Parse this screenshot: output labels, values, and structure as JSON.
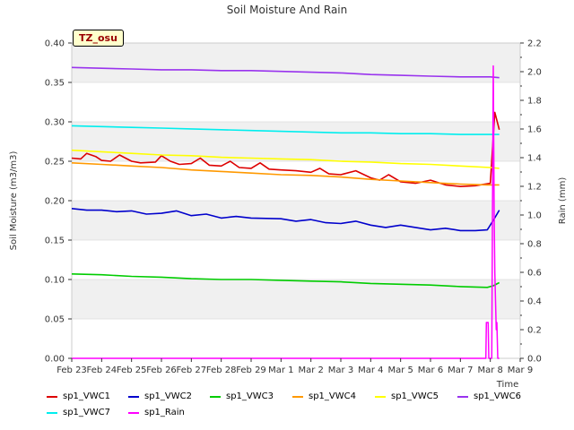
{
  "chart_data": {
    "type": "line",
    "title": "Soil Moisture And Rain",
    "xlabel": "Time",
    "ylabel_left": "Soil Moisture (m3/m3)",
    "ylabel_right": "Rain (mm)",
    "badge": "TZ_osu",
    "ylim_left": [
      0.0,
      0.4
    ],
    "ylim_right": [
      0.0,
      2.2
    ],
    "yticks_left": [
      "0.00",
      "0.05",
      "0.10",
      "0.15",
      "0.20",
      "0.25",
      "0.30",
      "0.35",
      "0.40"
    ],
    "yticks_right": [
      "0.0",
      "0.2",
      "0.4",
      "0.6",
      "0.8",
      "1.0",
      "1.2",
      "1.4",
      "1.6",
      "1.8",
      "2.0",
      "2.2"
    ],
    "xticks": [
      "Feb 23",
      "Feb 24",
      "Feb 25",
      "Feb 26",
      "Feb 27",
      "Feb 28",
      "Feb 29",
      "Mar 1",
      "Mar 2",
      "Mar 3",
      "Mar 4",
      "Mar 5",
      "Mar 6",
      "Mar 7",
      "Mar 8",
      "Mar 9"
    ],
    "grid": true,
    "legend_position": "bottom",
    "series": [
      {
        "name": "sp1_VWC1",
        "axis": "left",
        "color": "#dd0000",
        "x": [
          0.0,
          0.3,
          0.5,
          0.8,
          1.0,
          1.3,
          1.6,
          2.0,
          2.3,
          2.8,
          3.0,
          3.3,
          3.6,
          4.0,
          4.3,
          4.6,
          5.0,
          5.3,
          5.6,
          6.0,
          6.3,
          6.6,
          7.0,
          7.5,
          8.0,
          8.3,
          8.6,
          9.0,
          9.5,
          10.0,
          10.3,
          10.6,
          11.0,
          11.5,
          12.0,
          12.5,
          13.0,
          13.5,
          14.0,
          14.15,
          14.3
        ],
        "y": [
          0.254,
          0.253,
          0.26,
          0.256,
          0.251,
          0.25,
          0.258,
          0.25,
          0.248,
          0.249,
          0.257,
          0.25,
          0.246,
          0.247,
          0.254,
          0.245,
          0.244,
          0.25,
          0.242,
          0.241,
          0.248,
          0.24,
          0.239,
          0.238,
          0.236,
          0.241,
          0.234,
          0.233,
          0.238,
          0.229,
          0.226,
          0.233,
          0.224,
          0.222,
          0.226,
          0.22,
          0.218,
          0.219,
          0.222,
          0.312,
          0.29
        ]
      },
      {
        "name": "sp1_VWC2",
        "axis": "left",
        "color": "#0000cc",
        "x": [
          0.0,
          0.5,
          1.0,
          1.5,
          2.0,
          2.5,
          3.0,
          3.5,
          4.0,
          4.5,
          5.0,
          5.5,
          6.0,
          7.0,
          7.5,
          8.0,
          8.5,
          9.0,
          9.5,
          10.0,
          10.5,
          11.0,
          11.5,
          12.0,
          12.5,
          13.0,
          13.5,
          13.9,
          14.1,
          14.3
        ],
        "y": [
          0.19,
          0.188,
          0.188,
          0.186,
          0.187,
          0.183,
          0.184,
          0.187,
          0.181,
          0.183,
          0.178,
          0.18,
          0.178,
          0.177,
          0.174,
          0.176,
          0.172,
          0.171,
          0.174,
          0.169,
          0.166,
          0.169,
          0.166,
          0.163,
          0.165,
          0.162,
          0.162,
          0.163,
          0.175,
          0.188
        ]
      },
      {
        "name": "sp1_VWC3",
        "axis": "left",
        "color": "#00cc00",
        "x": [
          0.0,
          1.0,
          2.0,
          3.0,
          4.0,
          5.0,
          6.0,
          7.0,
          8.0,
          9.0,
          10.0,
          11.0,
          12.0,
          13.0,
          13.9,
          14.1,
          14.3
        ],
        "y": [
          0.107,
          0.106,
          0.104,
          0.103,
          0.101,
          0.1,
          0.1,
          0.099,
          0.098,
          0.097,
          0.095,
          0.094,
          0.093,
          0.091,
          0.09,
          0.092,
          0.096
        ]
      },
      {
        "name": "sp1_VWC4",
        "axis": "left",
        "color": "#ff9900",
        "x": [
          0.0,
          1.0,
          2.0,
          3.0,
          4.0,
          5.0,
          6.0,
          7.0,
          8.0,
          9.0,
          10.0,
          11.0,
          12.0,
          13.0,
          13.9,
          14.3
        ],
        "y": [
          0.248,
          0.246,
          0.244,
          0.242,
          0.239,
          0.237,
          0.235,
          0.233,
          0.232,
          0.23,
          0.227,
          0.225,
          0.223,
          0.221,
          0.22,
          0.22
        ]
      },
      {
        "name": "sp1_VWC5",
        "axis": "left",
        "color": "#ffff00",
        "x": [
          0.0,
          1.0,
          2.0,
          3.0,
          4.0,
          5.0,
          6.0,
          7.0,
          8.0,
          9.0,
          10.0,
          11.0,
          12.0,
          13.0,
          14.0,
          14.3
        ],
        "y": [
          0.264,
          0.262,
          0.26,
          0.258,
          0.257,
          0.255,
          0.254,
          0.253,
          0.252,
          0.25,
          0.249,
          0.247,
          0.246,
          0.244,
          0.242,
          0.241
        ]
      },
      {
        "name": "sp1_VWC6",
        "axis": "left",
        "color": "#9933ee",
        "x": [
          0.0,
          1.0,
          2.0,
          3.0,
          4.0,
          5.0,
          6.0,
          7.0,
          8.0,
          9.0,
          10.0,
          11.0,
          12.0,
          13.0,
          14.0,
          14.3
        ],
        "y": [
          0.369,
          0.368,
          0.367,
          0.366,
          0.366,
          0.365,
          0.365,
          0.364,
          0.363,
          0.362,
          0.36,
          0.359,
          0.358,
          0.357,
          0.357,
          0.356
        ]
      },
      {
        "name": "sp1_VWC7",
        "axis": "left",
        "color": "#00eeee",
        "x": [
          0.0,
          1.0,
          2.0,
          3.0,
          4.0,
          5.0,
          6.0,
          7.0,
          8.0,
          9.0,
          10.0,
          11.0,
          12.0,
          13.0,
          14.0,
          14.3
        ],
        "y": [
          0.295,
          0.294,
          0.293,
          0.292,
          0.291,
          0.29,
          0.289,
          0.288,
          0.287,
          0.286,
          0.286,
          0.285,
          0.285,
          0.284,
          0.284,
          0.284
        ]
      },
      {
        "name": "sp1_Rain",
        "axis": "right",
        "color": "#ff00ff",
        "x": [
          0.0,
          13.85,
          13.87,
          13.9,
          13.93,
          13.95,
          14.05,
          14.07,
          14.1,
          14.13,
          14.15,
          14.2,
          14.22,
          14.25,
          14.27,
          14.3
        ],
        "y": [
          0.0,
          0.0,
          0.25,
          0.25,
          0.25,
          0.0,
          0.0,
          0.9,
          2.04,
          1.0,
          0.6,
          0.2,
          0.25,
          0.0,
          0.0,
          0.0
        ]
      }
    ]
  }
}
